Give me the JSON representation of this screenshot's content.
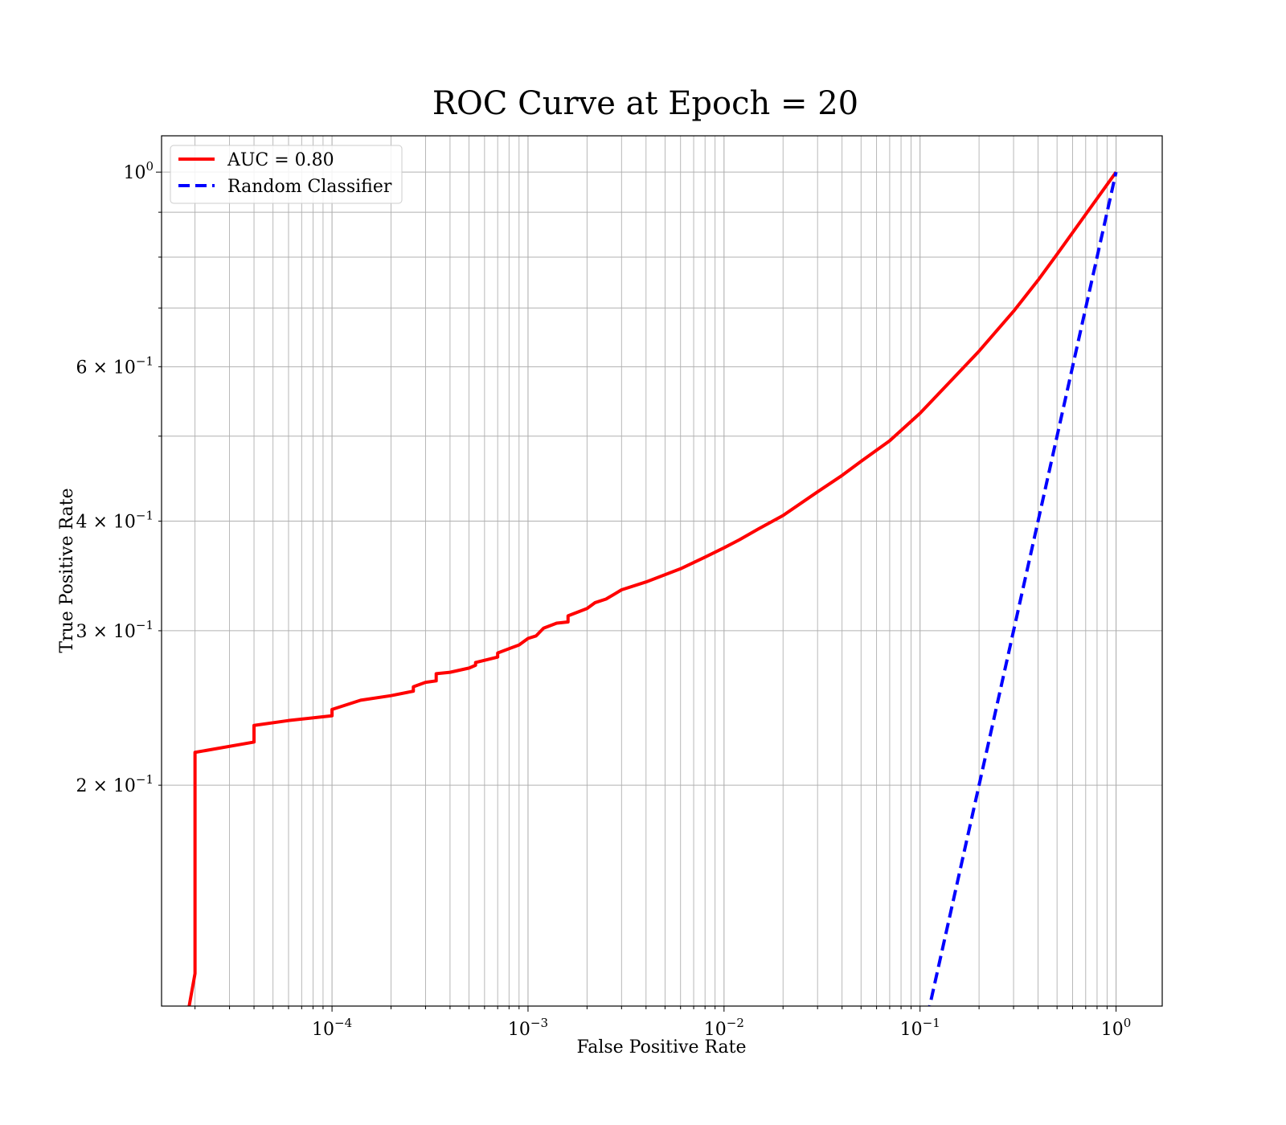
{
  "chart_data": {
    "type": "line",
    "title": "ROC Curve at Epoch = 20",
    "xlabel": "False Positive Rate",
    "ylabel": "True Positive Rate",
    "xscale": "log",
    "yscale": "log",
    "xlim": [
      1.35e-05,
      1.72
    ],
    "ylim": [
      0.112,
      1.1
    ],
    "grid": true,
    "legend_position": "top-left",
    "xticks": [
      {
        "value": 0.0001,
        "base": "10",
        "exp": "−4"
      },
      {
        "value": 0.001,
        "base": "10",
        "exp": "−3"
      },
      {
        "value": 0.01,
        "base": "10",
        "exp": "−2"
      },
      {
        "value": 0.1,
        "base": "10",
        "exp": "−1"
      },
      {
        "value": 1,
        "base": "10",
        "exp": "0"
      }
    ],
    "yticks": [
      {
        "value": 0.2,
        "base": "2 × 10",
        "exp": "−1"
      },
      {
        "value": 0.3,
        "base": "3 × 10",
        "exp": "−1"
      },
      {
        "value": 0.4,
        "base": "4 × 10",
        "exp": "−1"
      },
      {
        "value": 0.6,
        "base": "6 × 10",
        "exp": "−1"
      },
      {
        "value": 1,
        "base": "10",
        "exp": "0"
      }
    ],
    "series": [
      {
        "name": "AUC = 0.80",
        "color": "#ff0000",
        "style": "solid",
        "points": [
          [
            1.8e-05,
            0.107
          ],
          [
            2e-05,
            0.122
          ],
          [
            2e-05,
            0.218
          ],
          [
            4e-05,
            0.224
          ],
          [
            4e-05,
            0.234
          ],
          [
            6e-05,
            0.237
          ],
          [
            0.0001,
            0.24
          ],
          [
            0.0001,
            0.244
          ],
          [
            0.00014,
            0.25
          ],
          [
            0.0002,
            0.253
          ],
          [
            0.00026,
            0.256
          ],
          [
            0.00026,
            0.259
          ],
          [
            0.0003,
            0.262
          ],
          [
            0.00034,
            0.263
          ],
          [
            0.00034,
            0.268
          ],
          [
            0.0004,
            0.269
          ],
          [
            0.0005,
            0.272
          ],
          [
            0.00054,
            0.274
          ],
          [
            0.00054,
            0.276
          ],
          [
            0.0007,
            0.28
          ],
          [
            0.0007,
            0.283
          ],
          [
            0.0009,
            0.289
          ],
          [
            0.001,
            0.294
          ],
          [
            0.0011,
            0.296
          ],
          [
            0.0012,
            0.302
          ],
          [
            0.0014,
            0.306
          ],
          [
            0.0016,
            0.307
          ],
          [
            0.0016,
            0.312
          ],
          [
            0.002,
            0.318
          ],
          [
            0.0022,
            0.323
          ],
          [
            0.0025,
            0.326
          ],
          [
            0.003,
            0.334
          ],
          [
            0.004,
            0.341
          ],
          [
            0.006,
            0.353
          ],
          [
            0.008,
            0.364
          ],
          [
            0.01,
            0.373
          ],
          [
            0.012,
            0.381
          ],
          [
            0.015,
            0.392
          ],
          [
            0.02,
            0.406
          ],
          [
            0.03,
            0.432
          ],
          [
            0.04,
            0.451
          ],
          [
            0.05,
            0.468
          ],
          [
            0.07,
            0.494
          ],
          [
            0.1,
            0.531
          ],
          [
            0.15,
            0.584
          ],
          [
            0.2,
            0.625
          ],
          [
            0.3,
            0.694
          ],
          [
            0.4,
            0.753
          ],
          [
            0.5,
            0.806
          ],
          [
            0.7,
            0.895
          ],
          [
            1.0,
            1.0
          ]
        ]
      },
      {
        "name": "Random Classifier",
        "color": "#0000ff",
        "style": "dashed",
        "points": [
          [
            0.1,
            0.1
          ],
          [
            1.0,
            1.0
          ]
        ]
      }
    ]
  }
}
